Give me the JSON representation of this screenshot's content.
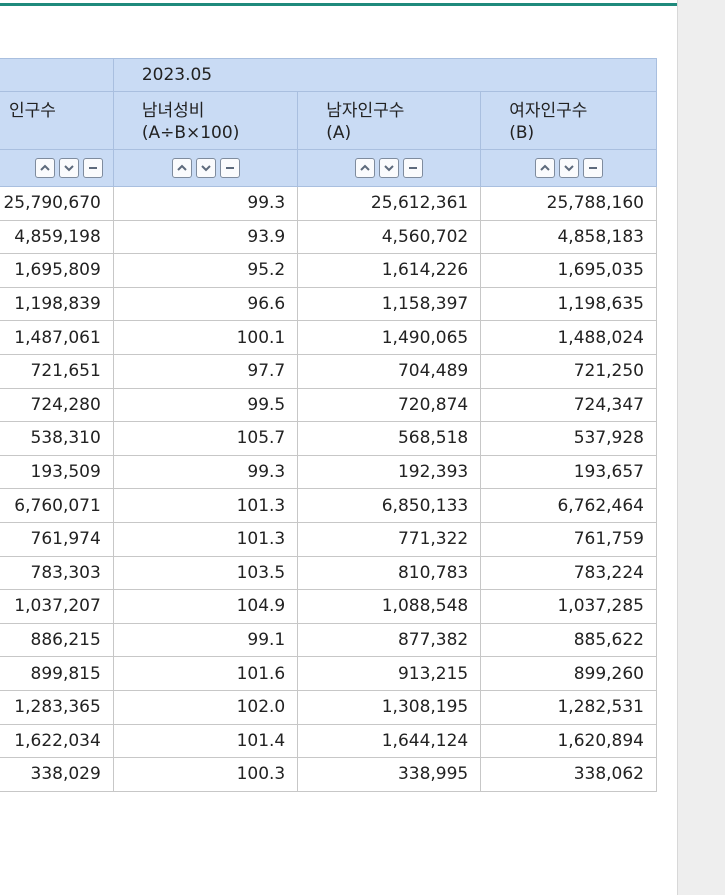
{
  "period": "2023.05",
  "columns": [
    {
      "line1": "인구수",
      "line2": ""
    },
    {
      "line1": "남녀성비",
      "line2": "(A÷B×100)"
    },
    {
      "line1": "남자인구수",
      "line2": "(A)"
    },
    {
      "line1": "여자인구수",
      "line2": "(B)"
    }
  ],
  "rows": [
    [
      "25,790,670",
      "99.3",
      "25,612,361",
      "25,788,160"
    ],
    [
      "4,859,198",
      "93.9",
      "4,560,702",
      "4,858,183"
    ],
    [
      "1,695,809",
      "95.2",
      "1,614,226",
      "1,695,035"
    ],
    [
      "1,198,839",
      "96.6",
      "1,158,397",
      "1,198,635"
    ],
    [
      "1,487,061",
      "100.1",
      "1,490,065",
      "1,488,024"
    ],
    [
      "721,651",
      "97.7",
      "704,489",
      "721,250"
    ],
    [
      "724,280",
      "99.5",
      "720,874",
      "724,347"
    ],
    [
      "538,310",
      "105.7",
      "568,518",
      "537,928"
    ],
    [
      "193,509",
      "99.3",
      "192,393",
      "193,657"
    ],
    [
      "6,760,071",
      "101.3",
      "6,850,133",
      "6,762,464"
    ],
    [
      "761,974",
      "101.3",
      "771,322",
      "761,759"
    ],
    [
      "783,303",
      "103.5",
      "810,783",
      "783,224"
    ],
    [
      "1,037,207",
      "104.9",
      "1,088,548",
      "1,037,285"
    ],
    [
      "886,215",
      "99.1",
      "877,382",
      "885,622"
    ],
    [
      "899,815",
      "101.6",
      "913,215",
      "899,260"
    ],
    [
      "1,283,365",
      "102.0",
      "1,308,195",
      "1,282,531"
    ],
    [
      "1,622,034",
      "101.4",
      "1,644,124",
      "1,620,894"
    ],
    [
      "338,029",
      "100.3",
      "338,995",
      "338,062"
    ]
  ],
  "colors": {
    "accent": "#1f8a7c",
    "header_bg": "#c9dbf4"
  },
  "icons": [
    "sort-ascending-icon",
    "sort-descending-icon",
    "remove-column-icon"
  ]
}
